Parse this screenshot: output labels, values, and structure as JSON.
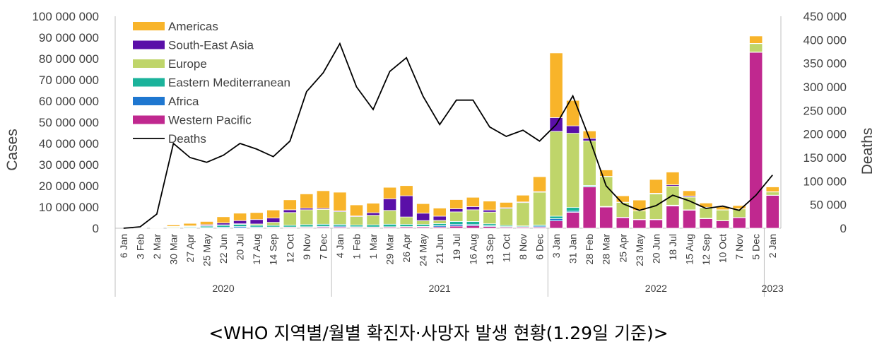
{
  "caption": "<WHO 지역별/월별 확진자·사망자 발생 현황(1.29일 기준)>",
  "chart_data": {
    "type": "bar",
    "stacked": true,
    "ylabel": "Cases",
    "y2label": "Deaths",
    "ylim": [
      0,
      100000000
    ],
    "y2lim": [
      0,
      450000
    ],
    "ytick_labels": [
      "0",
      "10 000 000",
      "20 000 000",
      "30 000 000",
      "40 000 000",
      "50 000 000",
      "60 000 000",
      "70 000 000",
      "80 000 000",
      "90 000 000",
      "100 000 000"
    ],
    "y2tick_labels": [
      "0",
      "50 000",
      "100 000",
      "150 000",
      "200 000",
      "250 000",
      "300 000",
      "350 000",
      "400 000",
      "450 000"
    ],
    "categories": [
      "6 Jan",
      "3 Feb",
      "2 Mar",
      "30 Mar",
      "27 Apr",
      "25 May",
      "22 Jun",
      "20 Jul",
      "17 Aug",
      "14 Sep",
      "12 Oct",
      "9 Nov",
      "7 Dec",
      "4 Jan",
      "1 Feb",
      "1 Mar",
      "29 Mar",
      "26 Apr",
      "24 May",
      "21 Jun",
      "19 Jul",
      "16 Aug",
      "13 Sep",
      "11 Oct",
      "8 Nov",
      "6 Dec",
      "3 Jan",
      "31 Jan",
      "28 Feb",
      "28 Mar",
      "25 Apr",
      "23 May",
      "20 Jun",
      "18 Jul",
      "15 Aug",
      "12 Sep",
      "10 Oct",
      "7 Nov",
      "5 Dec",
      "2 Jan"
    ],
    "years": [
      {
        "label": "2020",
        "start": 0,
        "end": 12
      },
      {
        "label": "2021",
        "start": 13,
        "end": 25
      },
      {
        "label": "2022",
        "start": 26,
        "end": 38
      },
      {
        "label": "2023",
        "start": 39,
        "end": 39
      }
    ],
    "series": [
      {
        "name": "Western Pacific",
        "color": "#C0288F",
        "values": [
          0,
          0.1,
          0.1,
          0.1,
          0.1,
          0.1,
          0.1,
          0.2,
          0.2,
          0.3,
          0.4,
          0.4,
          0.5,
          0.5,
          0.4,
          0.4,
          0.5,
          0.6,
          0.6,
          0.6,
          1.0,
          1.2,
          0.8,
          0.5,
          0.5,
          0.5,
          3.5,
          7.5,
          19.5,
          10,
          5,
          4,
          4,
          10.5,
          8.5,
          4.5,
          3.5,
          5,
          83,
          15.5
        ]
      },
      {
        "name": "Africa",
        "color": "#1F77D0",
        "values": [
          0,
          0,
          0,
          0.05,
          0.1,
          0.2,
          0.4,
          0.6,
          0.4,
          0.3,
          0.2,
          0.3,
          0.4,
          0.5,
          0.3,
          0.2,
          0.2,
          0.2,
          0.3,
          0.6,
          0.8,
          0.6,
          0.4,
          0.3,
          0.2,
          0.5,
          1.0,
          0.5,
          0.2,
          0.1,
          0.1,
          0.1,
          0.1,
          0.2,
          0.1,
          0.1,
          0.05,
          0.05,
          0.05,
          0.05
        ]
      },
      {
        "name": "Eastern Mediterranean",
        "color": "#1BB39B",
        "values": [
          0,
          0,
          0.05,
          0.2,
          0.4,
          0.7,
          0.9,
          1.0,
          0.8,
          0.7,
          0.8,
          1.0,
          1.0,
          0.8,
          0.8,
          1.0,
          1.2,
          1.0,
          0.9,
          1.0,
          1.4,
          1.4,
          0.9,
          0.5,
          0.4,
          0.5,
          1.2,
          1.8,
          0.5,
          0.2,
          0.1,
          0.1,
          0.1,
          0.2,
          0.1,
          0.1,
          0.05,
          0.05,
          0.05,
          0.05
        ]
      },
      {
        "name": "Europe",
        "color": "#BFD56A",
        "values": [
          0,
          0,
          0.1,
          0.4,
          0.3,
          0.2,
          0.2,
          0.3,
          0.6,
          1.5,
          6,
          7,
          7,
          6,
          4,
          4.5,
          6.5,
          3.5,
          1.8,
          1.5,
          4.5,
          5.5,
          5.5,
          8,
          11,
          15.5,
          40,
          35,
          21,
          14,
          7,
          4,
          12,
          9,
          6,
          5,
          5,
          4,
          4,
          1.5
        ]
      },
      {
        "name": "South-East Asia",
        "color": "#5A0FA8",
        "values": [
          0,
          0,
          0,
          0.1,
          0.2,
          0.5,
          0.9,
          1.5,
          2.1,
          2.0,
          1.3,
          0.8,
          0.5,
          0.4,
          0.3,
          1.2,
          5.5,
          10,
          3.5,
          2.0,
          1.5,
          1.5,
          1.0,
          0.4,
          0.3,
          0.3,
          6.5,
          3.5,
          1.2,
          0.2,
          0.1,
          0.1,
          0.3,
          0.6,
          0.5,
          0.2,
          0.1,
          0.1,
          0.1,
          0.1
        ]
      },
      {
        "name": "Americas",
        "color": "#F8B42A",
        "values": [
          0,
          0,
          0.1,
          0.7,
          1.2,
          1.5,
          2.9,
          3.5,
          3.3,
          3.8,
          4.7,
          6.7,
          8.3,
          8.8,
          5.2,
          4.5,
          5.4,
          4.8,
          4.5,
          3.8,
          4.3,
          4.4,
          4.2,
          2.5,
          3.2,
          7.0,
          30.5,
          12,
          3.5,
          3,
          3,
          5,
          6.5,
          6,
          2.5,
          2,
          1.5,
          1.5,
          3.5,
          2.3
        ]
      }
    ],
    "line": {
      "name": "Deaths",
      "color": "#000000",
      "axis": "right",
      "values": [
        0,
        3000,
        30000,
        180000,
        150000,
        140000,
        155000,
        180000,
        168000,
        152000,
        185000,
        290000,
        330000,
        392000,
        300000,
        252000,
        333000,
        362000,
        280000,
        220000,
        272000,
        272000,
        215000,
        195000,
        208000,
        185000,
        220000,
        281000,
        190000,
        90000,
        52000,
        38000,
        48000,
        70000,
        58000,
        42000,
        47000,
        38000,
        70000,
        113000
      ]
    },
    "legend": {
      "placement": "top-left",
      "entries": [
        {
          "label": "Americas",
          "color": "#F8B42A",
          "kind": "box"
        },
        {
          "label": "South-East Asia",
          "color": "#5A0FA8",
          "kind": "box"
        },
        {
          "label": "Europe",
          "color": "#BFD56A",
          "kind": "box"
        },
        {
          "label": "Eastern Mediterranean",
          "color": "#1BB39B",
          "kind": "box"
        },
        {
          "label": "Africa",
          "color": "#1F77D0",
          "kind": "box"
        },
        {
          "label": "Western Pacific",
          "color": "#C0288F",
          "kind": "box"
        },
        {
          "label": "Deaths",
          "color": "#000000",
          "kind": "line"
        }
      ]
    }
  }
}
